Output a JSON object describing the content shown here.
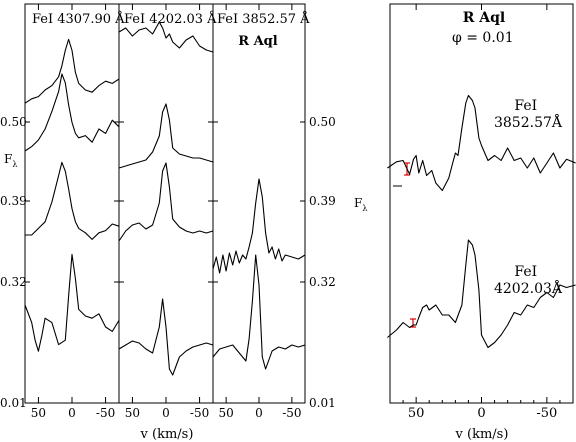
{
  "chart_data": [
    {
      "type": "line",
      "panel_group": "left",
      "ylabel": "F",
      "ylabel_sub": "λ",
      "xlabel": "v (km/s)",
      "xlim": [
        70,
        -70
      ],
      "xticks": [
        50,
        0,
        -50
      ],
      "xtick_labels": [
        "50",
        "0",
        "-50"
      ],
      "ytick_labels": [
        "0.50",
        "0.39",
        "0.32",
        "0.01"
      ],
      "panels": [
        {
          "label": "FeI 4307.90 Å",
          "series": [
            {
              "name": "0.50",
              "x": [
                70,
                60,
                50,
                40,
                30,
                20,
                15,
                10,
                5,
                0,
                -5,
                -10,
                -20,
                -30,
                -40,
                -50,
                -60,
                -70
              ],
              "y": [
                -0.6,
                -0.4,
                -0.3,
                0,
                0.2,
                0.6,
                1.1,
                1.8,
                2.3,
                1.8,
                0.8,
                0.3,
                0,
                -0.1,
                0.2,
                0.4,
                0.3,
                0.5
              ]
            },
            {
              "name": "0.39",
              "x": [
                70,
                60,
                50,
                40,
                30,
                20,
                15,
                10,
                5,
                0,
                -5,
                -10,
                -20,
                -30,
                -40,
                -50,
                -60,
                -70
              ],
              "y": [
                -0.5,
                -0.3,
                0,
                0.5,
                1.3,
                2.2,
                3.0,
                2.6,
                1.6,
                0.8,
                0.3,
                0.1,
                0.2,
                -0.1,
                0.5,
                0.3,
                0.9,
                0.6
              ]
            },
            {
              "name": "0.32",
              "x": [
                70,
                60,
                50,
                40,
                30,
                20,
                15,
                10,
                5,
                0,
                -5,
                -10,
                -20,
                -30,
                -40,
                -50,
                -60,
                -70
              ],
              "y": [
                0,
                0,
                0.3,
                0.6,
                1.5,
                2.7,
                3.3,
                2.9,
                2.1,
                1.2,
                0.6,
                0.3,
                0.1,
                -0.2,
                0.1,
                0.2,
                0.5,
                0.4
              ]
            },
            {
              "name": "0.01",
              "x": [
                70,
                60,
                55,
                50,
                45,
                40,
                30,
                20,
                10,
                5,
                0,
                -5,
                -10,
                -20,
                -30,
                -40,
                -50,
                -60,
                -70
              ],
              "y": [
                0,
                -0.8,
                -1.6,
                -2.1,
                -1.4,
                -0.6,
                -0.8,
                -1.8,
                -1.6,
                0.4,
                2.3,
                1.2,
                -0.2,
                -0.5,
                -0.6,
                -0.4,
                -1.0,
                -1.2,
                -0.7
              ]
            }
          ]
        },
        {
          "label": "FeI 4202.03 Å",
          "series": [
            {
              "name": "0.50",
              "x": [
                70,
                60,
                50,
                40,
                30,
                20,
                10,
                5,
                0,
                -5,
                -10,
                -20,
                -30,
                -40,
                -50,
                -60,
                -70
              ],
              "y": [
                1.4,
                1.6,
                1.2,
                1.5,
                1.6,
                1.3,
                1.9,
                1.6,
                1.1,
                1.3,
                0.9,
                0.6,
                1.0,
                1.2,
                0.7,
                0.5,
                0.4
              ]
            },
            {
              "name": "0.39",
              "x": [
                70,
                60,
                50,
                40,
                30,
                20,
                10,
                5,
                0,
                -5,
                -10,
                -20,
                -30,
                -40,
                -50,
                -60,
                -70
              ],
              "y": [
                -0.4,
                -0.3,
                -0.2,
                -0.1,
                0,
                0.4,
                1.2,
                2.4,
                2.8,
                2.0,
                0.6,
                0.3,
                0.2,
                0.1,
                0.1,
                0,
                -0.1
              ]
            },
            {
              "name": "0.32",
              "x": [
                70,
                60,
                50,
                40,
                30,
                20,
                10,
                5,
                0,
                -5,
                -10,
                -20,
                -30,
                -40,
                -50,
                -60,
                -70
              ],
              "y": [
                -0.3,
                0.2,
                0.5,
                0.6,
                0.3,
                0.5,
                1.6,
                3.2,
                3.6,
                2.4,
                0.8,
                0.4,
                0.2,
                0.1,
                0.2,
                0.1,
                0.2
              ]
            },
            {
              "name": "0.01",
              "x": [
                70,
                60,
                50,
                40,
                30,
                20,
                10,
                5,
                0,
                -5,
                -10,
                -20,
                -30,
                -40,
                -50,
                -60,
                -70
              ],
              "y": [
                -0.2,
                0,
                0.2,
                0.1,
                -0.2,
                -0.4,
                0.9,
                2.3,
                0.9,
                -1.2,
                -1.5,
                -0.6,
                -0.3,
                -0.1,
                0,
                0.1,
                0
              ]
            }
          ]
        },
        {
          "label": "FeI 3852.57 Å",
          "sublabel": "R Aql",
          "series": [
            {
              "name": "0.32",
              "x": [
                70,
                65,
                60,
                55,
                50,
                45,
                40,
                35,
                30,
                25,
                20,
                15,
                10,
                5,
                0,
                -5,
                -10,
                -15,
                -20,
                -25,
                -30,
                -35,
                -40,
                -50,
                -60,
                -70
              ],
              "y": [
                -0.2,
                0.4,
                -0.4,
                0.5,
                -0.3,
                0.6,
                0,
                0.7,
                0.1,
                0.5,
                0.3,
                0.9,
                1.6,
                3.1,
                4.3,
                3.4,
                1.6,
                0.6,
                0.9,
                0.3,
                0.8,
                0.2,
                0.5,
                0.4,
                0.3,
                0.5
              ]
            },
            {
              "name": "0.01",
              "x": [
                70,
                60,
                50,
                40,
                30,
                20,
                15,
                10,
                5,
                0,
                -5,
                -10,
                -20,
                -30,
                -40,
                -50,
                -60,
                -70
              ],
              "y": [
                -0.6,
                -0.2,
                -0.1,
                0,
                -0.4,
                -0.8,
                0.3,
                2.2,
                4.5,
                3.0,
                -0.6,
                -1.2,
                -0.3,
                -0.1,
                -0.2,
                0,
                -0.1,
                0
              ]
            }
          ]
        }
      ]
    },
    {
      "type": "line",
      "panel_group": "right",
      "title": "R Aql",
      "subtitle": "φ  = 0.01",
      "ylabel": "F",
      "ylabel_sub": "λ",
      "xlabel": "v (km/s)",
      "xlim": [
        70,
        -70
      ],
      "xticks": [
        50,
        0,
        -50
      ],
      "xtick_labels": [
        "50",
        "0",
        "-50"
      ],
      "series": [
        {
          "name": "FeI 3852.57Å",
          "x": [
            72,
            65,
            60,
            55,
            52,
            50,
            48,
            45,
            42,
            40,
            38,
            35,
            30,
            25,
            22,
            20,
            18,
            15,
            12,
            10,
            7,
            5,
            2,
            0,
            -5,
            -10,
            -15,
            -20,
            -25,
            -30,
            -35,
            -40,
            -45,
            -50,
            -55,
            -60,
            -65,
            -72
          ],
          "y": [
            0,
            0.25,
            0.3,
            -0.25,
            0.35,
            0.5,
            -0.2,
            0.3,
            -0.3,
            -0.2,
            -0.1,
            -0.6,
            -0.9,
            -0.4,
            0.2,
            0.6,
            0.5,
            1.6,
            2.6,
            2.9,
            2.7,
            2.4,
            1.2,
            0.9,
            0.3,
            0.5,
            0.3,
            0.8,
            0.3,
            0.4,
            0.0,
            0.4,
            -0.2,
            0.2,
            0.6,
            0.0,
            0.35,
            0.2
          ]
        },
        {
          "name": "FeI 4202.03Å",
          "x": [
            72,
            65,
            60,
            55,
            52,
            50,
            48,
            45,
            42,
            40,
            35,
            30,
            25,
            20,
            15,
            12,
            10,
            7,
            5,
            2,
            0,
            -5,
            -10,
            -15,
            -20,
            -25,
            -30,
            -35,
            -40,
            -45,
            -50,
            -55,
            -60,
            -65,
            -72
          ],
          "y": [
            -0.7,
            -0.4,
            -0.1,
            -0.3,
            -0.2,
            -0.2,
            0.1,
            0.5,
            0.6,
            0.4,
            0.6,
            0.2,
            0.2,
            -0.1,
            0.6,
            2.2,
            3.2,
            3.0,
            2.6,
            1.2,
            -0.6,
            -1.1,
            -0.9,
            -0.6,
            -0.2,
            0.3,
            0.2,
            0.6,
            0.5,
            0.9,
            1.1,
            0.9,
            1.4,
            1.3,
            1.4
          ]
        }
      ]
    }
  ]
}
